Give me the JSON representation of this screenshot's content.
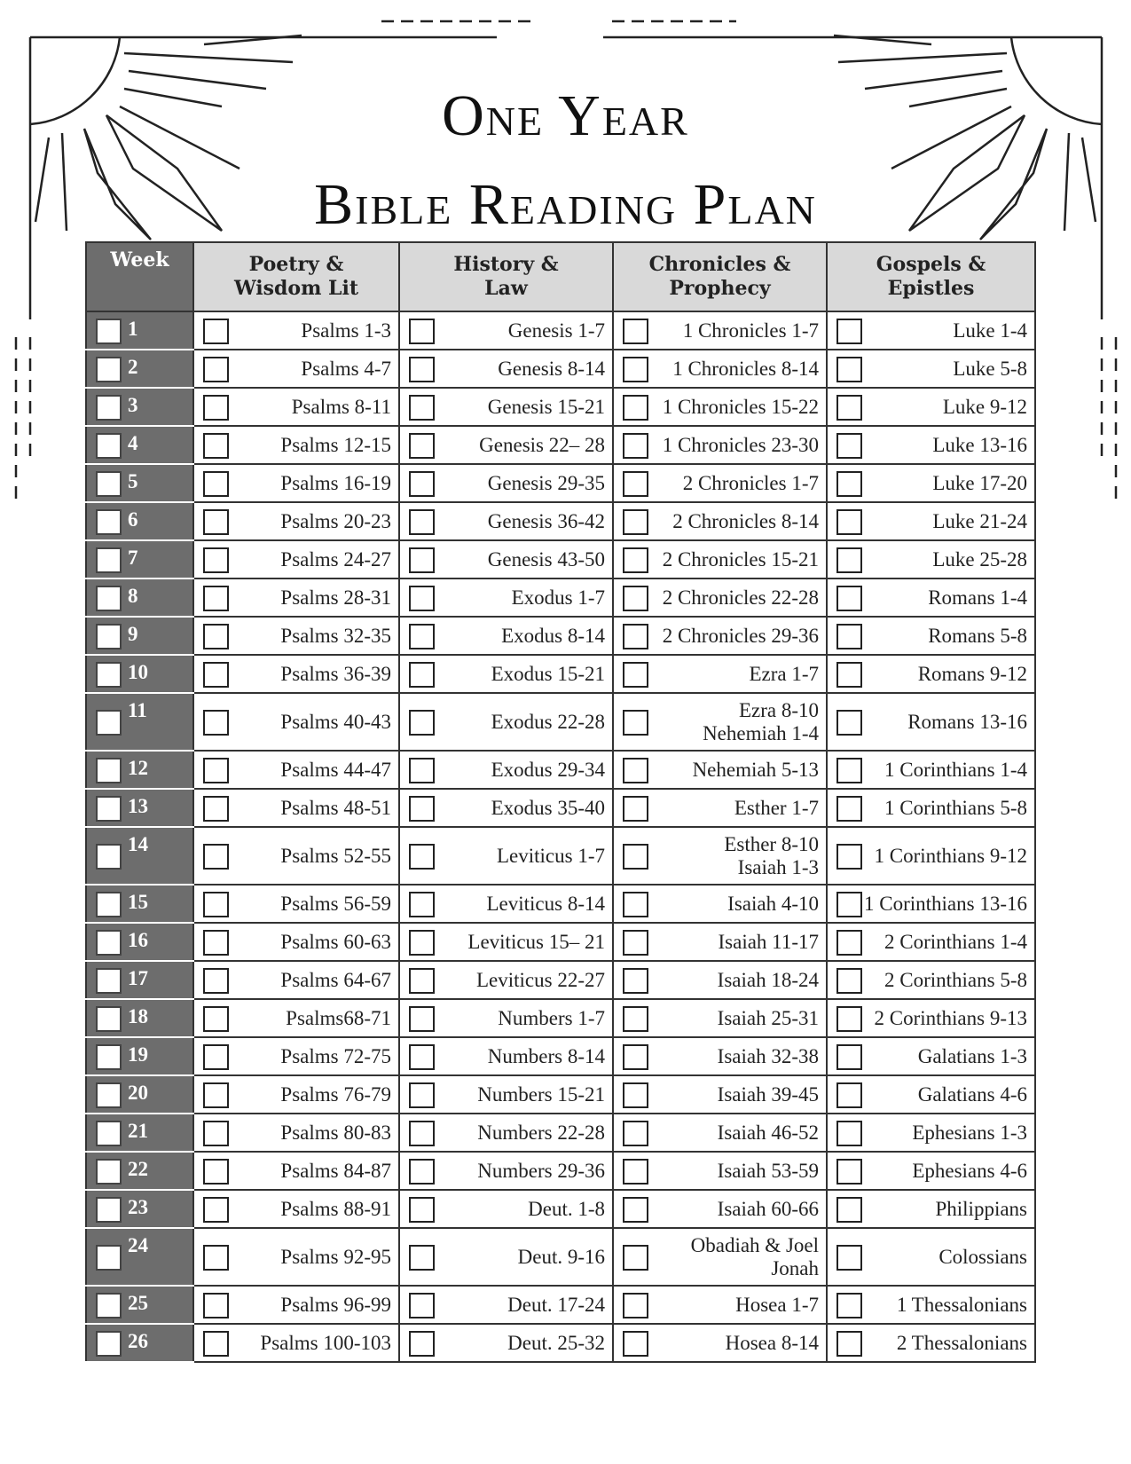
{
  "header": {
    "title": [
      "One Year",
      "Bible Reading Plan"
    ]
  },
  "table": {
    "columns": [
      "Week",
      "Poetry &\nWisdom Lit",
      "History &\nLaw",
      "Chronicles &\nProphecy",
      "Gospels &\nEpistles"
    ],
    "rows": [
      {
        "week": 1,
        "readings": [
          "Psalms 1-3",
          "Genesis 1-7",
          "1 Chronicles 1-7",
          "Luke 1-4"
        ]
      },
      {
        "week": 2,
        "readings": [
          "Psalms 4-7",
          "Genesis 8-14",
          "1 Chronicles 8-14",
          "Luke 5-8"
        ]
      },
      {
        "week": 3,
        "readings": [
          "Psalms 8-11",
          "Genesis 15-21",
          "1 Chronicles 15-22",
          "Luke 9-12"
        ]
      },
      {
        "week": 4,
        "readings": [
          "Psalms 12-15",
          "Genesis 22– 28",
          "1 Chronicles 23-30",
          "Luke 13-16"
        ]
      },
      {
        "week": 5,
        "readings": [
          "Psalms 16-19",
          "Genesis 29-35",
          "2 Chronicles 1-7",
          "Luke 17-20"
        ]
      },
      {
        "week": 6,
        "readings": [
          "Psalms 20-23",
          "Genesis 36-42",
          "2 Chronicles 8-14",
          "Luke 21-24"
        ]
      },
      {
        "week": 7,
        "readings": [
          "Psalms 24-27",
          "Genesis 43-50",
          "2 Chronicles 15-21",
          "Luke 25-28"
        ]
      },
      {
        "week": 8,
        "readings": [
          "Psalms 28-31",
          "Exodus 1-7",
          "2 Chronicles 22-28",
          "Romans 1-4"
        ]
      },
      {
        "week": 9,
        "readings": [
          "Psalms 32-35",
          "Exodus 8-14",
          "2 Chronicles 29-36",
          "Romans 5-8"
        ]
      },
      {
        "week": 10,
        "readings": [
          "Psalms 36-39",
          "Exodus 15-21",
          "Ezra 1-7",
          "Romans 9-12"
        ]
      },
      {
        "week": 11,
        "readings": [
          "Psalms 40-43",
          "Exodus 22-28",
          "Ezra 8-10\nNehemiah 1-4",
          "Romans 13-16"
        ]
      },
      {
        "week": 12,
        "readings": [
          "Psalms 44-47",
          "Exodus 29-34",
          "Nehemiah 5-13",
          "1 Corinthians 1-4"
        ]
      },
      {
        "week": 13,
        "readings": [
          "Psalms 48-51",
          "Exodus 35-40",
          "Esther 1-7",
          "1 Corinthians 5-8"
        ]
      },
      {
        "week": 14,
        "readings": [
          "Psalms 52-55",
          "Leviticus 1-7",
          "Esther 8-10\nIsaiah 1-3",
          "1 Corinthians 9-12"
        ]
      },
      {
        "week": 15,
        "readings": [
          "Psalms 56-59",
          "Leviticus 8-14",
          "Isaiah 4-10",
          "1 Corinthians 13-16"
        ]
      },
      {
        "week": 16,
        "readings": [
          "Psalms 60-63",
          "Leviticus 15– 21",
          "Isaiah 11-17",
          "2 Corinthians 1-4"
        ]
      },
      {
        "week": 17,
        "readings": [
          "Psalms 64-67",
          "Leviticus 22-27",
          "Isaiah 18-24",
          "2 Corinthians 5-8"
        ]
      },
      {
        "week": 18,
        "readings": [
          "Psalms68-71",
          "Numbers 1-7",
          "Isaiah 25-31",
          "2 Corinthians 9-13"
        ]
      },
      {
        "week": 19,
        "readings": [
          "Psalms 72-75",
          "Numbers 8-14",
          "Isaiah 32-38",
          "Galatians 1-3"
        ]
      },
      {
        "week": 20,
        "readings": [
          "Psalms 76-79",
          "Numbers 15-21",
          "Isaiah 39-45",
          "Galatians 4-6"
        ]
      },
      {
        "week": 21,
        "readings": [
          "Psalms 80-83",
          "Numbers 22-28",
          "Isaiah 46-52",
          "Ephesians 1-3"
        ]
      },
      {
        "week": 22,
        "readings": [
          "Psalms 84-87",
          "Numbers 29-36",
          "Isaiah 53-59",
          "Ephesians 4-6"
        ]
      },
      {
        "week": 23,
        "readings": [
          "Psalms 88-91",
          "Deut. 1-8",
          "Isaiah 60-66",
          "Philippians"
        ]
      },
      {
        "week": 24,
        "readings": [
          "Psalms 92-95",
          "Deut. 9-16",
          "Obadiah & Joel\nJonah",
          "Colossians"
        ]
      },
      {
        "week": 25,
        "readings": [
          "Psalms 96-99",
          "Deut. 17-24",
          "Hosea 1-7",
          "1 Thessalonians"
        ]
      },
      {
        "week": 26,
        "readings": [
          "Psalms 100-103",
          "Deut. 25-32",
          "Hosea 8-14",
          "2 Thessalonians"
        ]
      }
    ]
  }
}
